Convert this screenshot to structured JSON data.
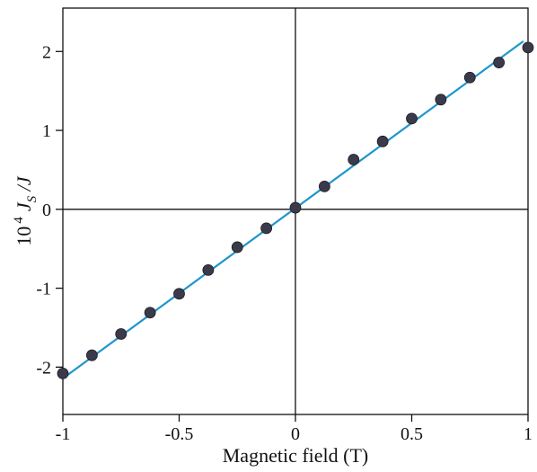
{
  "chart_data": {
    "type": "scatter",
    "title": "",
    "xlabel": "Magnetic field  (T)",
    "ylabel": {
      "prefix": "10",
      "exponent": "4",
      "symbol": "J",
      "subscript": "S",
      "suffix": " /J"
    },
    "xlim": [
      -1,
      1
    ],
    "ylim": [
      -2.6,
      2.55
    ],
    "x_ticks": [
      {
        "value": -1,
        "label": "-1"
      },
      {
        "value": -0.5,
        "label": "-0.5"
      },
      {
        "value": 0,
        "label": "0"
      },
      {
        "value": 0.5,
        "label": "0.5"
      },
      {
        "value": 1,
        "label": "1"
      }
    ],
    "y_ticks": [
      {
        "value": -2,
        "label": "-2"
      },
      {
        "value": -1,
        "label": "-1"
      },
      {
        "value": 0,
        "label": "0"
      },
      {
        "value": 1,
        "label": "1"
      },
      {
        "value": 2,
        "label": "2"
      }
    ],
    "grid": false,
    "zero_lines": true,
    "series": [
      {
        "marker_color": "#3a3a4a",
        "x": [
          -1.0,
          -0.875,
          -0.75,
          -0.625,
          -0.5,
          -0.375,
          -0.25,
          -0.125,
          0.0,
          0.125,
          0.25,
          0.375,
          0.5,
          0.625,
          0.75,
          0.875,
          1.0
        ],
        "y": [
          -2.08,
          -1.85,
          -1.58,
          -1.31,
          -1.07,
          -0.77,
          -0.48,
          -0.24,
          0.02,
          0.29,
          0.63,
          0.86,
          1.15,
          1.39,
          1.67,
          1.86,
          2.05
        ]
      }
    ],
    "fit_line": {
      "color": "#1f96cc",
      "x": [
        -0.98,
        0.98
      ],
      "y": [
        -2.1,
        2.13
      ]
    }
  }
}
